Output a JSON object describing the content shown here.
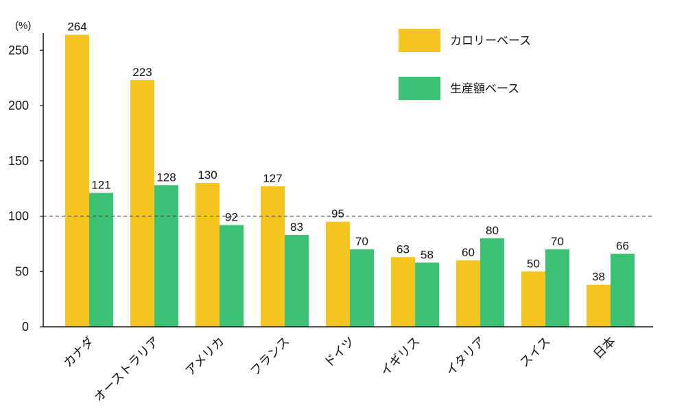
{
  "chart_data": {
    "type": "bar",
    "title": "",
    "xlabel": "",
    "ylabel": "(%)",
    "ylim": [
      0,
      260
    ],
    "yticks": [
      0,
      50,
      100,
      150,
      200,
      250
    ],
    "reference_line": 100,
    "grid": false,
    "legend_position": "top-right",
    "categories": [
      "カナダ",
      "オーストラリア",
      "アメリカ",
      "フランス",
      "ドイツ",
      "イギリス",
      "イタリア",
      "スイス",
      "日本"
    ],
    "series": [
      {
        "name": "カロリーベース",
        "color": "#f4c41f",
        "values": [
          264,
          223,
          130,
          127,
          95,
          63,
          60,
          50,
          38
        ]
      },
      {
        "name": "生産額ベース",
        "color": "#3cc274",
        "values": [
          121,
          128,
          92,
          83,
          70,
          58,
          80,
          70,
          66
        ]
      }
    ]
  }
}
